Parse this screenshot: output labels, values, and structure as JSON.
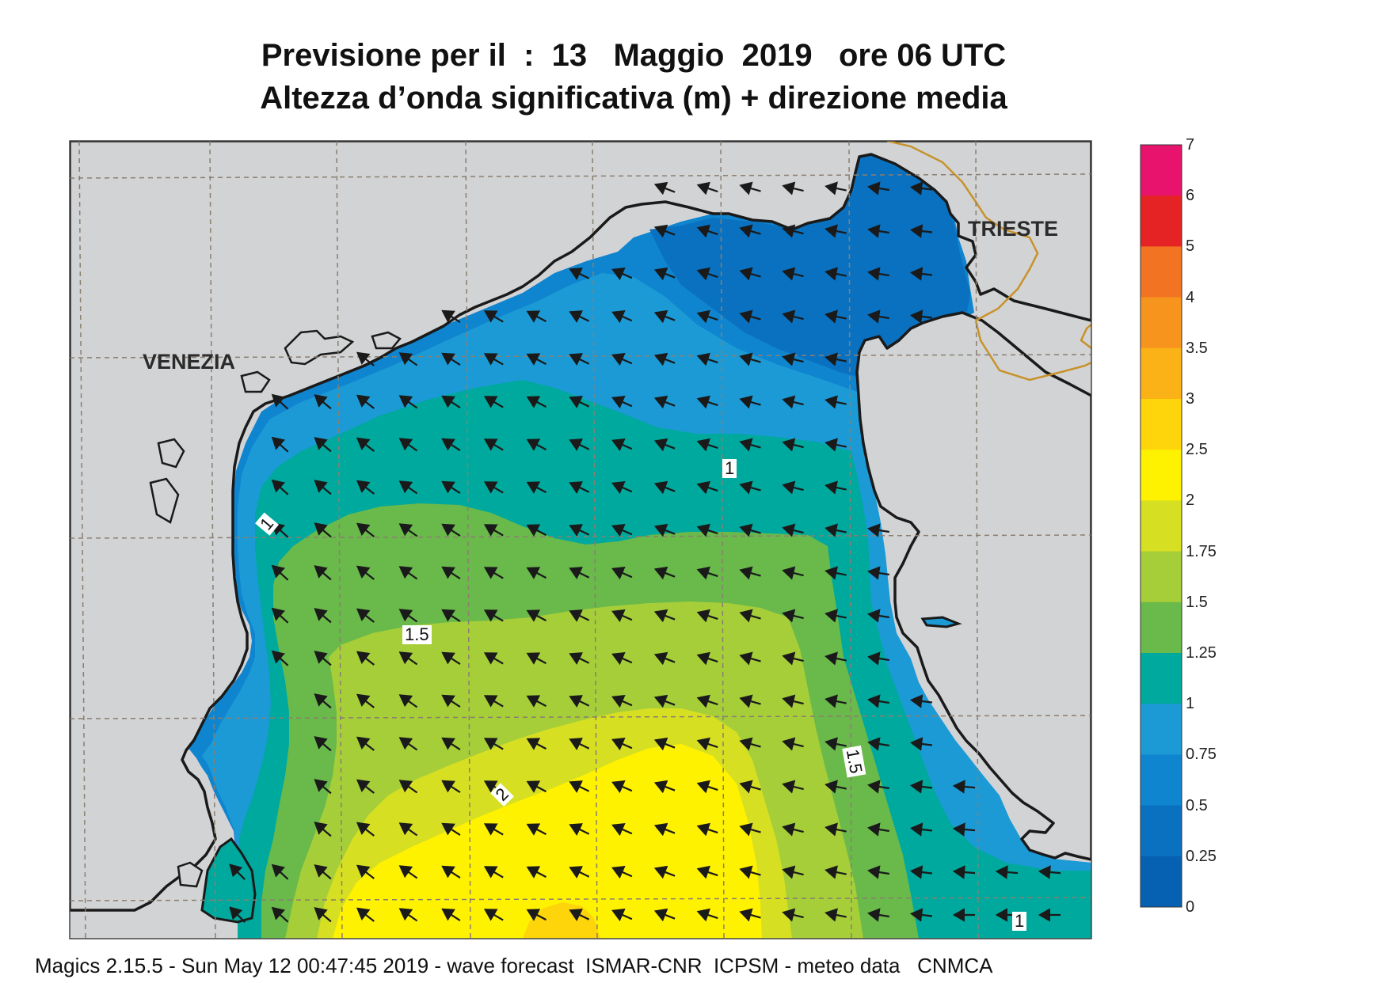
{
  "title": {
    "line1": "Previsione per il  :  13   Maggio  2019   ore 06 UTC",
    "line2": "Altezza d’onda significativa (m) + direzione media"
  },
  "cities": {
    "venezia": "VENEZIA",
    "trieste": "TRIESTE"
  },
  "contour_labels": [
    "1",
    "1",
    "1.5",
    "2",
    "1.5",
    "1"
  ],
  "colorbar": {
    "labels": [
      "7",
      "6",
      "5",
      "4",
      "3.5",
      "3",
      "2.5",
      "2",
      "1.75",
      "1.5",
      "1.25",
      "1",
      "0.75",
      "0.5",
      "0.25",
      "0"
    ],
    "colors": [
      "#e8136c",
      "#e52325",
      "#f27321",
      "#f7941d",
      "#fbb216",
      "#fed40a",
      "#fff200",
      "#d7df23",
      "#a6ce39",
      "#6ab94b",
      "#00a99d",
      "#1c9ad6",
      "#0f85cf",
      "#0a71c0",
      "#0661b3"
    ]
  },
  "colors": {
    "land": "#d2d3d5",
    "coast": "#1a1a1a",
    "border": "#c8922a",
    "grid": "#8a7f70",
    "arrow": "#1a1a1a"
  },
  "footer": "Magics 2.15.5 - Sun May 12 00:47:45 2019 - wave forecast  ISMAR-CNR  ICPSM - meteo data   CNMCA"
}
